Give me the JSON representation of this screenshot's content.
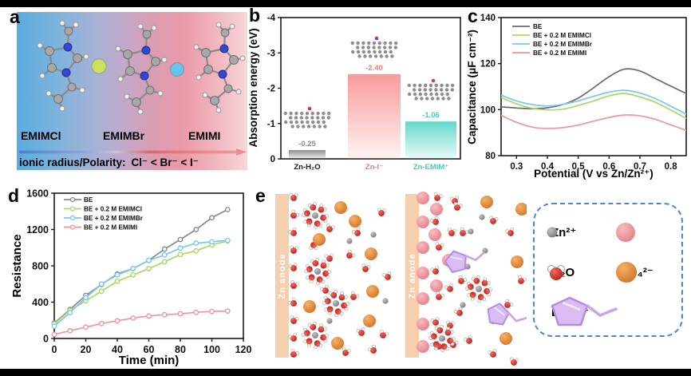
{
  "panels": {
    "a_label": "a",
    "b_label": "b",
    "c_label": "c",
    "d_label": "d",
    "e_label": "e"
  },
  "panel_a": {
    "molecule_names": [
      "EMIMCl",
      "EMIMBr",
      "EMIMI"
    ],
    "caption_prefix": "ionic radius/Polarity:",
    "caption_relation": "Cl⁻ < Br⁻ < I⁻",
    "anion_colors": {
      "chloride": "#cde05c",
      "bromide": "#66c4ee",
      "iodide": "#efa2a8"
    }
  },
  "chart_data": [
    {
      "id": "b",
      "type": "bar",
      "ylabel": "Absorption energy (eV)",
      "categories": [
        "Zn-H₂O",
        "Zn-I⁻",
        "Zn-EMIM⁺"
      ],
      "values": [
        -0.25,
        -2.4,
        -1.06
      ],
      "value_labels": [
        "-0.25",
        "-2.40",
        "-1.06"
      ],
      "bar_colors": [
        "#8c8c8c",
        "#f89b9b",
        "#63d8c8"
      ],
      "label_colors": [
        "#8a8a8a",
        "#ee7f7f",
        "#45cfc0"
      ],
      "category_colors": [
        "#1a1a1a",
        "#ee7f7f",
        "#45cfc0"
      ],
      "ylim": [
        0,
        -4
      ],
      "yticks": [
        0,
        -1,
        -2,
        -3,
        -4
      ],
      "axis_inverted": true,
      "grid": false
    },
    {
      "id": "c",
      "type": "line",
      "xlabel": "Potential (V vs Zn/Zn²⁺)",
      "ylabel": "Capacitance (μF cm⁻²)",
      "xlim": [
        0.25,
        0.85
      ],
      "ylim": [
        80,
        140
      ],
      "xticks": [
        0.3,
        0.4,
        0.5,
        0.6,
        0.7,
        0.8
      ],
      "yticks": [
        80,
        100,
        120,
        140
      ],
      "legend_position": "top-left",
      "grid": false,
      "x": [
        0.25,
        0.3,
        0.35,
        0.4,
        0.45,
        0.5,
        0.55,
        0.6,
        0.65,
        0.7,
        0.75,
        0.8,
        0.85
      ],
      "series": [
        {
          "name": "BE",
          "color": "#6b6b6b",
          "values": [
            101.2,
            100.7,
            100.4,
            100.8,
            102.2,
            105.0,
            109.5,
            114.3,
            117.6,
            116.8,
            113.5,
            110.2,
            107.0
          ]
        },
        {
          "name": "BE + 0.2 M EMIMCl",
          "color": "#a8d964",
          "values": [
            105.3,
            102.5,
            100.6,
            99.9,
            100.2,
            101.8,
            103.8,
            106.0,
            107.0,
            105.5,
            103.2,
            99.8,
            96.2
          ]
        },
        {
          "name": "BE + 0.2 M EMIMBr",
          "color": "#7cc6f0",
          "values": [
            106.3,
            103.8,
            102.2,
            101.6,
            102.3,
            103.8,
            105.8,
            107.6,
            108.4,
            107.2,
            104.8,
            101.5,
            98.0
          ]
        },
        {
          "name": "BE + 0.2 M EMIMI",
          "color": "#f59496",
          "values": [
            97.5,
            94.5,
            92.4,
            91.8,
            92.2,
            93.3,
            95.0,
            96.6,
            97.7,
            97.3,
            95.8,
            93.4,
            91.0
          ]
        }
      ]
    },
    {
      "id": "d",
      "type": "line",
      "xlabel": "Time (min)",
      "ylabel": "Resistance",
      "xlim": [
        0,
        120
      ],
      "ylim": [
        0,
        1600
      ],
      "xticks": [
        0,
        20,
        40,
        60,
        80,
        100,
        120
      ],
      "yticks": [
        0,
        400,
        800,
        1200,
        1600
      ],
      "legend_position": "top-left",
      "markers": true,
      "grid": false,
      "x": [
        0,
        10,
        20,
        30,
        40,
        50,
        60,
        70,
        80,
        90,
        100,
        110
      ],
      "series": [
        {
          "name": "BE",
          "color": "#8a8a8a",
          "values": [
            170,
            320,
            475,
            595,
            710,
            770,
            860,
            985,
            1090,
            1200,
            1330,
            1420
          ]
        },
        {
          "name": "BE + 0.2 M EMIMCl",
          "color": "#a8d964",
          "values": [
            160,
            310,
            415,
            520,
            630,
            700,
            770,
            845,
            925,
            965,
            1030,
            1075
          ]
        },
        {
          "name": "BE + 0.2 M EMIMBr",
          "color": "#7cc6f0",
          "values": [
            135,
            285,
            450,
            600,
            700,
            770,
            860,
            920,
            995,
            1050,
            1065,
            1080
          ]
        },
        {
          "name": "BE + 0.2 M EMIMI",
          "color": "#f59496",
          "values": [
            45,
            85,
            125,
            165,
            195,
            225,
            248,
            262,
            272,
            288,
            298,
            302
          ]
        }
      ]
    }
  ],
  "panel_e": {
    "anode_label": "Zn anode",
    "legend": {
      "border_color": "#4a86d8",
      "items": [
        {
          "icon": "zn-ion-icon",
          "label": "Zn²⁺"
        },
        {
          "icon": "iodide-icon",
          "label": "I⁻"
        },
        {
          "icon": "water-icon",
          "label": "H₂O"
        },
        {
          "icon": "sulfate-icon",
          "label": "SO₄²⁻"
        },
        {
          "icon": "emim-cation-icon",
          "label": "EMIM⁺"
        }
      ]
    }
  }
}
